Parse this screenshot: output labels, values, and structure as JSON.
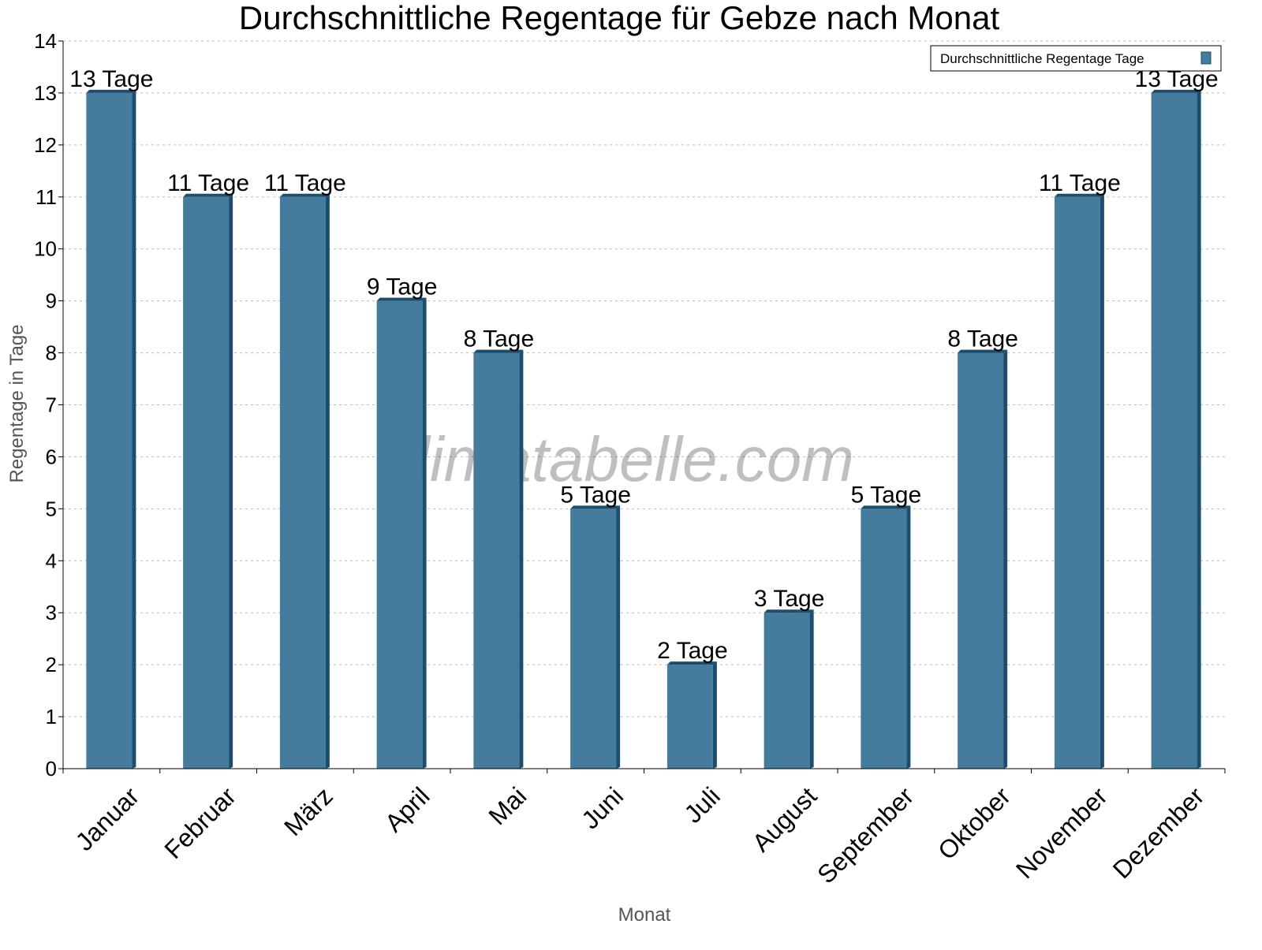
{
  "chart_data": {
    "type": "bar",
    "title": "Durchschnittliche Regentage für Gebze nach Monat",
    "xlabel": "Monat",
    "ylabel": "Regentage in Tage",
    "ylim": [
      0,
      14
    ],
    "yticks": [
      0,
      1,
      2,
      3,
      4,
      5,
      6,
      7,
      8,
      9,
      10,
      11,
      12,
      13,
      14
    ],
    "grid": true,
    "legend_position": "top-right",
    "categories": [
      "Januar",
      "Februar",
      "März",
      "April",
      "Mai",
      "Juni",
      "Juli",
      "August",
      "September",
      "Oktober",
      "November",
      "Dezember"
    ],
    "series": [
      {
        "name": "Durchschnittliche Regentage Tage",
        "values": [
          13,
          11,
          11,
          9,
          8,
          5,
          2,
          3,
          5,
          8,
          11,
          13
        ],
        "labels": [
          "13 Tage",
          "11 Tage",
          "11 Tage",
          "9 Tage",
          "8 Tage",
          "5 Tage",
          "2 Tage",
          "3 Tage",
          "5 Tage",
          "8 Tage",
          "11 Tage",
          "13 Tage"
        ],
        "color": "#457b9d",
        "shade_color": "#1b4d6e"
      }
    ],
    "watermark": "klimatabelle.com"
  }
}
